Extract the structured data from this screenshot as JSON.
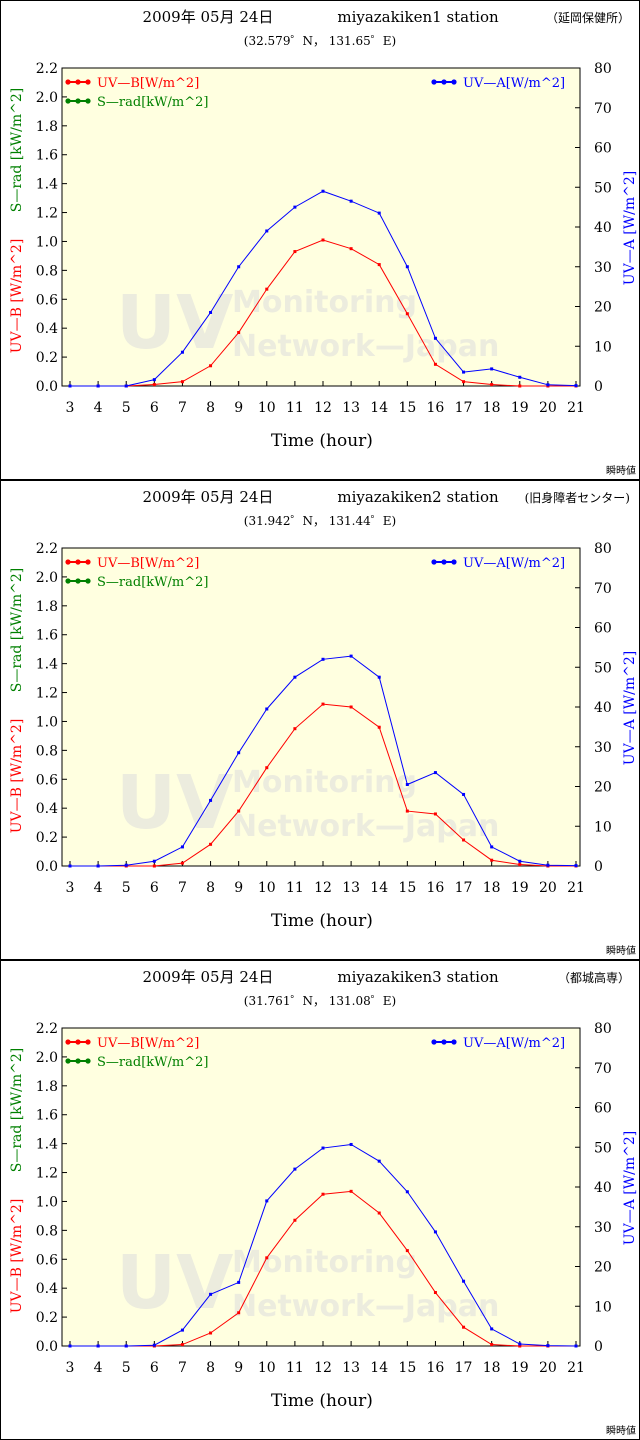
{
  "colors": {
    "uvb": "#ff0000",
    "srad": "#008000",
    "uva": "#0000ff",
    "plot_bg": "#ffffe0",
    "frame": "#000000"
  },
  "watermark": {
    "big": "UV",
    "line1": "Monitoring",
    "line2": "Network—Japan"
  },
  "chart_data": [
    {
      "type": "line",
      "title_date": "2009年 05月 24日",
      "title_station": "miyazakiken1 station",
      "title_place": "（延岡保健所）",
      "subtitle": "(32.579゜N， 131.65゜E)",
      "xlabel": "Time (hour)",
      "ylabel_left_uvb": "UV—B [W/m^2]",
      "ylabel_left_srad": "S—rad [kW/m^2]",
      "ylabel_right": "UV—A [W/m^2]",
      "legend": {
        "uvb": "UV—B[W/m^2]",
        "srad": "S—rad[kW/m^2]",
        "uva": "UV—A[W/m^2]"
      },
      "note": "瞬時値",
      "x_ticks": [
        "3",
        "4",
        "5",
        "6",
        "7",
        "8",
        "9",
        "10",
        "11",
        "12",
        "13",
        "14",
        "15",
        "16",
        "17",
        "18",
        "19",
        "20",
        "21"
      ],
      "left_ticks": [
        "0.0",
        "0.2",
        "0.4",
        "0.6",
        "0.8",
        "1.0",
        "1.2",
        "1.4",
        "1.6",
        "1.8",
        "2.0",
        "2.2"
      ],
      "right_ticks": [
        "0",
        "10",
        "20",
        "30",
        "40",
        "50",
        "60",
        "70",
        "80"
      ],
      "xlim": [
        3,
        21
      ],
      "ylim_left": [
        0,
        2.2
      ],
      "ylim_right": [
        0,
        80
      ],
      "x": [
        3,
        4,
        5,
        6,
        7,
        8,
        9,
        10,
        11,
        12,
        13,
        14,
        15,
        16,
        17,
        18,
        19,
        20,
        21
      ],
      "series": [
        {
          "name": "UV—B[W/m^2]",
          "axis": "left",
          "values": [
            0,
            0,
            0,
            0.01,
            0.03,
            0.14,
            0.37,
            0.67,
            0.93,
            1.01,
            0.95,
            0.84,
            0.5,
            0.15,
            0.03,
            0.01,
            0,
            0,
            0
          ]
        },
        {
          "name": "UV—A[W/m^2]",
          "axis": "right",
          "values": [
            0,
            0,
            0,
            1.6,
            8.5,
            18.5,
            30,
            39,
            45,
            49,
            46.5,
            43.5,
            30,
            12,
            3.5,
            4.3,
            2.2,
            0.3,
            0.1
          ]
        }
      ]
    },
    {
      "type": "line",
      "title_date": "2009年 05月 24日",
      "title_station": "miyazakiken2 station",
      "title_place": "(旧身障者センター)",
      "subtitle": "(31.942゜N， 131.44゜E)",
      "xlabel": "Time (hour)",
      "ylabel_left_uvb": "UV—B [W/m^2]",
      "ylabel_left_srad": "S—rad [kW/m^2]",
      "ylabel_right": "UV—A [W/m^2]",
      "legend": {
        "uvb": "UV—B[W/m^2]",
        "srad": "S—rad[kW/m^2]",
        "uva": "UV—A[W/m^2]"
      },
      "note": "瞬時値",
      "x_ticks": [
        "3",
        "4",
        "5",
        "6",
        "7",
        "8",
        "9",
        "10",
        "11",
        "12",
        "13",
        "14",
        "15",
        "16",
        "17",
        "18",
        "19",
        "20",
        "21"
      ],
      "left_ticks": [
        "0.0",
        "0.2",
        "0.4",
        "0.6",
        "0.8",
        "1.0",
        "1.2",
        "1.4",
        "1.6",
        "1.8",
        "2.0",
        "2.2"
      ],
      "right_ticks": [
        "0",
        "10",
        "20",
        "30",
        "40",
        "50",
        "60",
        "70",
        "80"
      ],
      "xlim": [
        3,
        21
      ],
      "ylim_left": [
        0,
        2.2
      ],
      "ylim_right": [
        0,
        80
      ],
      "x": [
        3,
        4,
        5,
        6,
        7,
        8,
        9,
        10,
        11,
        12,
        13,
        14,
        15,
        16,
        17,
        18,
        19,
        20,
        21
      ],
      "series": [
        {
          "name": "UV—B[W/m^2]",
          "axis": "left",
          "values": [
            0,
            0,
            0,
            0,
            0.02,
            0.15,
            0.38,
            0.68,
            0.95,
            1.12,
            1.1,
            0.96,
            0.38,
            0.36,
            0.18,
            0.04,
            0.01,
            0,
            0
          ]
        },
        {
          "name": "UV—A[W/m^2]",
          "axis": "right",
          "values": [
            0,
            0,
            0.2,
            1.2,
            4.8,
            16.5,
            28.5,
            39.5,
            47.5,
            52,
            52.8,
            47.5,
            20.5,
            23.5,
            18,
            4.8,
            1.2,
            0.2,
            0.1
          ]
        }
      ]
    },
    {
      "type": "line",
      "title_date": "2009年 05月 24日",
      "title_station": "miyazakiken3 station",
      "title_place": "（都城高専）",
      "subtitle": "(31.761゜N， 131.08゜E)",
      "xlabel": "Time (hour)",
      "ylabel_left_uvb": "UV—B [W/m^2]",
      "ylabel_left_srad": "S—rad [kW/m^2]",
      "ylabel_right": "UV—A [W/m^2]",
      "legend": {
        "uvb": "UV—B[W/m^2]",
        "srad": "S—rad[kW/m^2]",
        "uva": "UV—A[W/m^2]"
      },
      "note": "瞬時値",
      "x_ticks": [
        "3",
        "4",
        "5",
        "6",
        "7",
        "8",
        "9",
        "10",
        "11",
        "12",
        "13",
        "14",
        "15",
        "16",
        "17",
        "18",
        "19",
        "20",
        "21"
      ],
      "left_ticks": [
        "0.0",
        "0.2",
        "0.4",
        "0.6",
        "0.8",
        "1.0",
        "1.2",
        "1.4",
        "1.6",
        "1.8",
        "2.0",
        "2.2"
      ],
      "right_ticks": [
        "0",
        "10",
        "20",
        "30",
        "40",
        "50",
        "60",
        "70",
        "80"
      ],
      "xlim": [
        3,
        21
      ],
      "ylim_left": [
        0,
        2.2
      ],
      "ylim_right": [
        0,
        80
      ],
      "x": [
        3,
        4,
        5,
        6,
        7,
        8,
        9,
        10,
        11,
        12,
        13,
        14,
        15,
        16,
        17,
        18,
        19,
        20,
        21
      ],
      "series": [
        {
          "name": "UV—B[W/m^2]",
          "axis": "left",
          "values": [
            0,
            0,
            0,
            0,
            0.01,
            0.09,
            0.23,
            0.61,
            0.87,
            1.05,
            1.07,
            0.92,
            0.66,
            0.37,
            0.13,
            0.01,
            0,
            0,
            0
          ]
        },
        {
          "name": "UV—A[W/m^2]",
          "axis": "right",
          "values": [
            0,
            0,
            0,
            0.2,
            4,
            13,
            16,
            36.5,
            44.5,
            49.8,
            50.7,
            46.5,
            38.8,
            28.7,
            16.3,
            4.3,
            0.5,
            0.1,
            0
          ]
        }
      ]
    }
  ]
}
